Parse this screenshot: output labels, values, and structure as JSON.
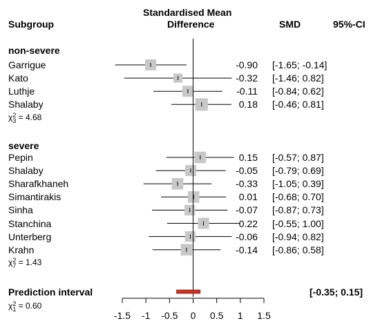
{
  "chart_data": {
    "type": "forest",
    "headers": {
      "subgroup": "Subgroup",
      "title_line1": "Standardised Mean",
      "title_line2": "Difference",
      "smd": "SMD",
      "ci": "95%-CI"
    },
    "groups": [
      {
        "name": "non-severe",
        "stat_prefix": "χ",
        "stat_df": "3",
        "stat_value": "= 4.68",
        "studies": [
          {
            "name": "Garrigue",
            "smd": -0.9,
            "lower": -1.65,
            "upper": -0.14,
            "weight": 1.0,
            "smd_text": "-0.90",
            "ci_text": "[-1.65; -0.14]"
          },
          {
            "name": "Kato",
            "smd": -0.32,
            "lower": -1.46,
            "upper": 0.82,
            "weight": 0.6,
            "smd_text": "-0.32",
            "ci_text": "[-1.46;  0.82]"
          },
          {
            "name": "Luthje",
            "smd": -0.11,
            "lower": -0.84,
            "upper": 0.62,
            "weight": 1.0,
            "smd_text": "-0.11",
            "ci_text": "[-0.84;  0.62]"
          },
          {
            "name": "Shalaby",
            "smd": 0.18,
            "lower": -0.46,
            "upper": 0.81,
            "weight": 1.3,
            "smd_text": "0.18",
            "ci_text": "[-0.46;  0.81]"
          }
        ]
      },
      {
        "name": "severe",
        "stat_prefix": "χ",
        "stat_df": "7",
        "stat_value": "= 1.43",
        "studies": [
          {
            "name": "Pepin",
            "smd": 0.15,
            "lower": -0.57,
            "upper": 0.87,
            "weight": 1.1,
            "smd_text": "0.15",
            "ci_text": "[-0.57;  0.87]"
          },
          {
            "name": "Shalaby",
            "smd": -0.05,
            "lower": -0.79,
            "upper": 0.69,
            "weight": 1.0,
            "smd_text": "-0.05",
            "ci_text": "[-0.79;  0.69]"
          },
          {
            "name": "Sharafkhaneh",
            "smd": -0.33,
            "lower": -1.05,
            "upper": 0.39,
            "weight": 1.1,
            "smd_text": "-0.33",
            "ci_text": "[-1.05;  0.39]"
          },
          {
            "name": "Simantirakis",
            "smd": 0.01,
            "lower": -0.68,
            "upper": 0.7,
            "weight": 1.1,
            "smd_text": "0.01",
            "ci_text": "[-0.68;  0.70]"
          },
          {
            "name": "Sinha",
            "smd": -0.07,
            "lower": -0.87,
            "upper": 0.73,
            "weight": 0.9,
            "smd_text": "-0.07",
            "ci_text": "[-0.87;  0.73]"
          },
          {
            "name": "Stanchina",
            "smd": 0.22,
            "lower": -0.55,
            "upper": 1.0,
            "weight": 1.0,
            "smd_text": "0.22",
            "ci_text": "[-0.55;  1.00]"
          },
          {
            "name": "Unterberg",
            "smd": -0.06,
            "lower": -0.94,
            "upper": 0.82,
            "weight": 0.9,
            "smd_text": "-0.06",
            "ci_text": "[-0.94;  0.82]"
          },
          {
            "name": "Krahn",
            "smd": -0.14,
            "lower": -0.86,
            "upper": 0.58,
            "weight": 1.1,
            "smd_text": "-0.14",
            "ci_text": "[-0.86;  0.58]"
          }
        ]
      }
    ],
    "prediction_interval": {
      "label": "Prediction interval",
      "lower": -0.35,
      "upper": 0.15,
      "ci_text": "[-0.35;  0.15]",
      "stat_prefix": "χ",
      "stat_df": "1",
      "stat_value": "= 0.60",
      "color": "#d32f1e"
    },
    "x_ticks": [
      -1.5,
      -1,
      -0.5,
      0,
      0.5,
      1,
      1.5
    ],
    "x_tick_labels": [
      "-1.5",
      "-1",
      "-0.5",
      "0",
      "0.5",
      "1",
      "1.5"
    ],
    "xlim": [
      -1.5,
      1.5
    ],
    "reference_line": 0,
    "square_color": "#c8c8c8"
  }
}
